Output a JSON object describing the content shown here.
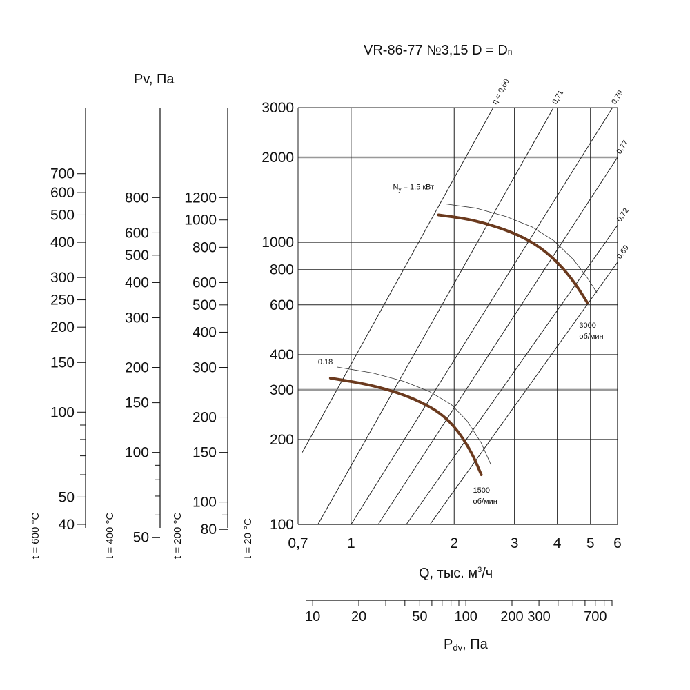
{
  "chart_data": {
    "type": "line",
    "title": "VR-86-77 №3,15 D = D",
    "title_subscript": "n",
    "xlabel": "Q, тыс. м³/ч",
    "xlabel_prefix": "Q, тыс. м",
    "xlabel_sup": "3",
    "xlabel_suffix": "/ч",
    "ylabel_side": "Pv, Па",
    "pdv_label": "P",
    "pdv_label_sub": "dv",
    "pdv_label_suffix": ", Па",
    "x_scale": "log",
    "y_scale": "log",
    "xlim": [
      0.7,
      6
    ],
    "ylim": [
      100,
      3000
    ],
    "x_ticks": [
      {
        "value": 0.7,
        "label": "0,7"
      },
      {
        "value": 1,
        "label": "1"
      },
      {
        "value": 2,
        "label": "2"
      },
      {
        "value": 3,
        "label": "3"
      },
      {
        "value": 4,
        "label": "4"
      },
      {
        "value": 5,
        "label": "5"
      },
      {
        "value": 6,
        "label": "6"
      }
    ],
    "y_ticks": [
      {
        "value": 100,
        "label": "100"
      },
      {
        "value": 200,
        "label": "200"
      },
      {
        "value": 300,
        "label": "300"
      },
      {
        "value": 400,
        "label": "400"
      },
      {
        "value": 600,
        "label": "600"
      },
      {
        "value": 800,
        "label": "800"
      },
      {
        "value": 1000,
        "label": "1000"
      },
      {
        "value": 2000,
        "label": "2000"
      },
      {
        "value": 3000,
        "label": "3000"
      }
    ],
    "series": [
      {
        "name": "3000 об/мин",
        "label_line1": "3000",
        "label_line2": "об/мин",
        "power_label": "N",
        "power_sub": "y",
        "power_value": " = 1.5 кВт",
        "color": "#6b3a1e",
        "x": [
          1.8,
          2.2,
          2.7,
          3.2,
          3.7,
          4.2,
          4.6,
          4.9
        ],
        "y": [
          1250,
          1210,
          1130,
          1040,
          930,
          800,
          690,
          610
        ]
      },
      {
        "name": "1500 об/мин",
        "label_line1": "1500",
        "label_line2": "об/мин",
        "power_label": "0.18",
        "color": "#6b3a1e",
        "x": [
          0.87,
          1.1,
          1.35,
          1.6,
          1.85,
          2.05,
          2.25,
          2.4
        ],
        "y": [
          330,
          315,
          295,
          272,
          245,
          215,
          180,
          150
        ]
      }
    ],
    "efficiency_lines": [
      {
        "label": "η = 0,60",
        "x": [
          0.72,
          2.6
        ],
        "y": [
          180,
          3000
        ]
      },
      {
        "label": "0,71",
        "x": [
          0.8,
          3.9
        ],
        "y": [
          100,
          3000
        ]
      },
      {
        "label": "0,79",
        "x": [
          1.0,
          5.8
        ],
        "y": [
          100,
          3000
        ]
      },
      {
        "label": "0,77",
        "x": [
          1.2,
          6.0
        ],
        "y": [
          100,
          2000
        ]
      },
      {
        "label": "0,72",
        "x": [
          1.45,
          6.0
        ],
        "y": [
          100,
          1150
        ]
      },
      {
        "label": "0,69",
        "x": [
          1.7,
          6.0
        ],
        "y": [
          100,
          850
        ]
      }
    ],
    "pv_scales": [
      {
        "temp": "t = 600 °C",
        "labels": [
          {
            "value": 700,
            "label": "700"
          },
          {
            "value": 600,
            "label": "600"
          },
          {
            "value": 500,
            "label": "500"
          },
          {
            "value": 400,
            "label": "400"
          },
          {
            "value": 300,
            "label": "300"
          },
          {
            "value": 250,
            "label": "250"
          },
          {
            "value": 200,
            "label": "200"
          },
          {
            "value": 150,
            "label": "150"
          },
          {
            "value": 100,
            "label": "100"
          },
          {
            "value": 50,
            "label": "50"
          },
          {
            "value": 40,
            "label": "40"
          }
        ]
      },
      {
        "temp": "t = 400 °C",
        "labels": [
          {
            "value": 800,
            "label": "800"
          },
          {
            "value": 600,
            "label": "600"
          },
          {
            "value": 500,
            "label": "500"
          },
          {
            "value": 400,
            "label": "400"
          },
          {
            "value": 300,
            "label": "300"
          },
          {
            "value": 200,
            "label": "200"
          },
          {
            "value": 150,
            "label": "150"
          },
          {
            "value": 100,
            "label": "100"
          },
          {
            "value": 50,
            "label": "50"
          }
        ]
      },
      {
        "temp": "t = 200 °C",
        "labels": [
          {
            "value": 1200,
            "label": "1200"
          },
          {
            "value": 1000,
            "label": "1000"
          },
          {
            "value": 800,
            "label": "800"
          },
          {
            "value": 600,
            "label": "600"
          },
          {
            "value": 500,
            "label": "500"
          },
          {
            "value": 400,
            "label": "400"
          },
          {
            "value": 300,
            "label": "300"
          },
          {
            "value": 200,
            "label": "200"
          },
          {
            "value": 150,
            "label": "150"
          },
          {
            "value": 100,
            "label": "100"
          },
          {
            "value": 80,
            "label": "80"
          }
        ]
      },
      {
        "temp": "t = 20 °C",
        "labels": []
      }
    ],
    "pdv_ticks": [
      {
        "value": 10,
        "label": "10"
      },
      {
        "value": 20,
        "label": "20"
      },
      {
        "value": 50,
        "label": "50"
      },
      {
        "value": 100,
        "label": "100"
      },
      {
        "value": 200,
        "label": "200"
      },
      {
        "value": 300,
        "label": "300"
      },
      {
        "value": 700,
        "label": "700"
      }
    ],
    "pdv_range": [
      9,
      900
    ],
    "grid": true
  }
}
